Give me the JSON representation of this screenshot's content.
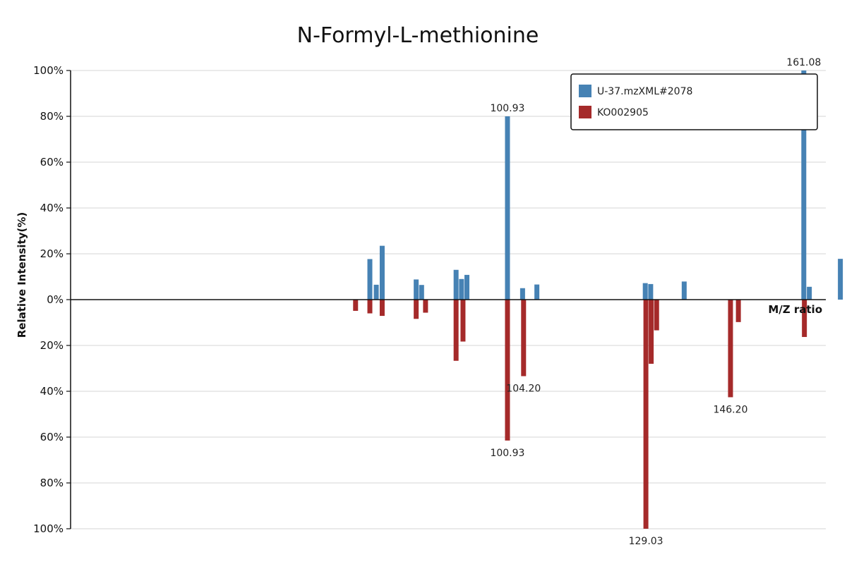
{
  "chart_data": {
    "type": "bar",
    "title": "N-Formyl-L-methionine",
    "xlabel": "M/Z ratio",
    "ylabel": "Relative Intensity(%)",
    "ylim": [
      -100,
      100
    ],
    "ytick_values": [
      100,
      80,
      60,
      40,
      20,
      0,
      -20,
      -40,
      -60,
      -80,
      -100
    ],
    "ytick_labels": [
      "100%",
      "80%",
      "60%",
      "40%",
      "20%",
      "0%",
      "20%",
      "40%",
      "60%",
      "80%",
      "100%"
    ],
    "grid": true,
    "legend_position": "top-right",
    "colors": {
      "series1": "#4682b4",
      "series2": "#a52a2a"
    },
    "series": [
      {
        "name": "U-37.mzXML#2078",
        "color": "#4682b4",
        "direction": "up",
        "peaks": [
          {
            "mz": 73.0,
            "intensity": 17.7
          },
          {
            "mz": 74.3,
            "intensity": 6.5
          },
          {
            "mz": 75.5,
            "intensity": 23.5
          },
          {
            "mz": 82.4,
            "intensity": 8.8
          },
          {
            "mz": 83.5,
            "intensity": 6.4
          },
          {
            "mz": 90.5,
            "intensity": 13.0
          },
          {
            "mz": 91.6,
            "intensity": 9.0
          },
          {
            "mz": 92.7,
            "intensity": 10.8
          },
          {
            "mz": 100.93,
            "intensity": 80,
            "label": "100.93"
          },
          {
            "mz": 104.0,
            "intensity": 5.0
          },
          {
            "mz": 106.9,
            "intensity": 6.6
          },
          {
            "mz": 128.9,
            "intensity": 7.2
          },
          {
            "mz": 130.0,
            "intensity": 6.8
          },
          {
            "mz": 136.8,
            "intensity": 7.9
          },
          {
            "mz": 161.08,
            "intensity": 100,
            "label": "161.08"
          },
          {
            "mz": 162.2,
            "intensity": 5.6
          },
          {
            "mz": 168.5,
            "intensity": 17.8
          }
        ]
      },
      {
        "name": "KO002905",
        "color": "#a52a2a",
        "direction": "down",
        "peaks": [
          {
            "mz": 70.1,
            "intensity": 4.9
          },
          {
            "mz": 73.0,
            "intensity": 6.0
          },
          {
            "mz": 75.5,
            "intensity": 7.1
          },
          {
            "mz": 82.4,
            "intensity": 8.4
          },
          {
            "mz": 84.3,
            "intensity": 5.7
          },
          {
            "mz": 90.5,
            "intensity": 26.7
          },
          {
            "mz": 91.9,
            "intensity": 18.3
          },
          {
            "mz": 100.93,
            "intensity": 61.5,
            "label": "100.93"
          },
          {
            "mz": 104.2,
            "intensity": 33.4,
            "label": "104.20"
          },
          {
            "mz": 129.03,
            "intensity": 100,
            "label": "129.03"
          },
          {
            "mz": 130.1,
            "intensity": 28.0
          },
          {
            "mz": 131.2,
            "intensity": 13.4
          },
          {
            "mz": 146.2,
            "intensity": 42.6,
            "label": "146.20"
          },
          {
            "mz": 147.8,
            "intensity": 9.8
          },
          {
            "mz": 161.2,
            "intensity": 16.3
          }
        ]
      }
    ]
  }
}
